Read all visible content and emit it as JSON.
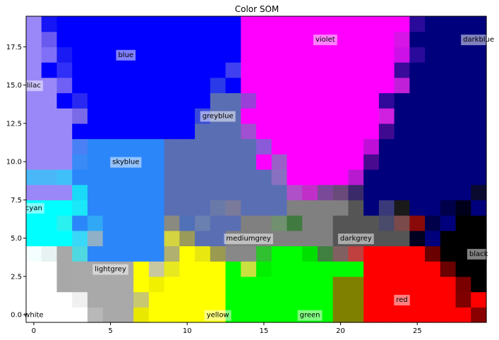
{
  "chart_data": {
    "type": "heatmap",
    "title": "Color SOM",
    "xlabel": "",
    "ylabel": "",
    "grid_cols": 30,
    "grid_rows": 20,
    "xlim": [
      -0.5,
      29.5
    ],
    "ylim": [
      -0.5,
      19.5
    ],
    "x_ticks": [
      0,
      5,
      10,
      15,
      20,
      25
    ],
    "x_tick_labels": [
      "0",
      "5",
      "10",
      "15",
      "20",
      "25"
    ],
    "y_ticks": [
      0,
      2.5,
      5,
      7.5,
      10,
      12.5,
      15,
      17.5
    ],
    "y_tick_labels": [
      "0.0",
      "2.5",
      "5.0",
      "7.5",
      "10.0",
      "12.5",
      "15.0",
      "17.5"
    ],
    "palette": {
      "L": "#9b88f8",
      "B": "#0000fe",
      "V": "#ff00ff",
      "D": "#00007d",
      "S": "#2b86fa",
      "G": "#5a6eb4",
      "C": "#00ffff",
      "M": "#808080",
      "K": "#555555",
      "k": "#000000",
      "Y": "#ffff00",
      "N": "#00ff00",
      "R": "#ff0000",
      "W": "#ffffff",
      "A": "#a9a9a9"
    },
    "grid": [
      "LBBBBBBBBBBBBBVVVVVVVVVVVDDDDD",
      "LBBBBBBBBBBBBBVVVVVVVVVVVDDDDD",
      "LBBBBBBBBBBBBBVVVVVVVVVVVDDDDD",
      "LBBBBBBBBBBBBBVVVVVVVVVVVDDDDD",
      "LLBBBBBBBBBBBBVVVVVVVVVVVDDDDD",
      "LLBBBBBBBBBBGGVVVVVVVVVVDDDDDD",
      "LLLBBBBBBBBGGGVVVVVVVVVVDDDDDD",
      "LLLBBBBBBBBGGGVVVVVVVVVVDDDDDD",
      "LLLLSSSSSGGGGGGVVVVVVVVDDDDDDD",
      "LLLSSSSSSGGGGGGVVVVVVVVDDDDDDD",
      "LLLSSSSSSGGGGGGGVVVVVVDDDDDDDD",
      "LLLSSSSSSGGGGGGGGVVVVVDDDDDDDD",
      "CCCSSSSSSGGGGGGGGMMMMKDDDDDDDD",
      "CCCSSSSSSGGGGGMMMMMMKKKKDDDDkk",
      "CCCSSSSSSGGGGMMMMMMMKKKKKDDkkk",
      "CCCCSSSSSGGMMMMMMMMMKKKKKKkkkk",
      "CCCCAAAAAAMMMMMMMMMMKKKKKKkkkk",
      "CCCCAAAAAAMMMMMMMMMMKKKKKKkkkk",
      "CCCCAAAAAMMMMMMMMMMMKKKKKKkkkk",
      "CCCCAAAAAAMMMMMMMMMMKKKKKKkkkk"
    ],
    "overrides": [
      {
        "c": 1,
        "r": 19,
        "color": "#1515f5"
      },
      {
        "c": 25,
        "r": 19,
        "color": "#2a0a9a"
      },
      {
        "c": 1,
        "r": 18,
        "color": "#6a5af0"
      },
      {
        "c": 24,
        "r": 18,
        "color": "#d616e6"
      },
      {
        "c": 1,
        "r": 17,
        "color": "#8070f8"
      },
      {
        "c": 24,
        "r": 17,
        "color": "#cc10e8"
      },
      {
        "c": 2,
        "r": 17,
        "color": "#1a1af5"
      },
      {
        "c": 25,
        "r": 17,
        "color": "#2a0a9a"
      },
      {
        "c": 13,
        "r": 16,
        "color": "#4040f0"
      },
      {
        "c": 24,
        "r": 16,
        "color": "#3a0a9a"
      },
      {
        "c": 2,
        "r": 16,
        "color": "#3030f8"
      },
      {
        "c": 12,
        "r": 15,
        "color": "#2a3ae8"
      },
      {
        "c": 24,
        "r": 15,
        "color": "#c020d8"
      },
      {
        "c": 2,
        "r": 15,
        "color": "#7060f5"
      },
      {
        "c": 14,
        "r": 14,
        "color": "#9a40d8"
      },
      {
        "c": 23,
        "r": 14,
        "color": "#30089a"
      },
      {
        "c": 3,
        "r": 14,
        "color": "#2828f0"
      },
      {
        "c": 11,
        "r": 13,
        "color": "#3a4ad8"
      },
      {
        "c": 23,
        "r": 13,
        "color": "#d020e0"
      },
      {
        "c": 3,
        "r": 13,
        "color": "#7a6ae8"
      },
      {
        "c": 14,
        "r": 12,
        "color": "#a050d0"
      },
      {
        "c": 23,
        "r": 12,
        "color": "#400a90"
      },
      {
        "c": 3,
        "r": 11,
        "color": "#4a80f5"
      },
      {
        "c": 15,
        "r": 11,
        "color": "#8a5ad8"
      },
      {
        "c": 22,
        "r": 11,
        "color": "#c010d8"
      },
      {
        "c": 22,
        "r": 10,
        "color": "#4a0a90"
      },
      {
        "c": 3,
        "r": 10,
        "color": "#3a8af8"
      },
      {
        "c": 16,
        "r": 10,
        "color": "#9a60c8"
      },
      {
        "c": 0,
        "r": 9,
        "color": "#4ab8f8"
      },
      {
        "c": 1,
        "r": 9,
        "color": "#4ab8f8"
      },
      {
        "c": 2,
        "r": 9,
        "color": "#40c0f8"
      },
      {
        "c": 16,
        "r": 9,
        "color": "#8a70c0"
      },
      {
        "c": 21,
        "r": 9,
        "color": "#b81ad0"
      },
      {
        "c": 17,
        "r": 8,
        "color": "#b050c8"
      },
      {
        "c": 18,
        "r": 8,
        "color": "#c030c8"
      },
      {
        "c": 19,
        "r": 8,
        "color": "#7a4a98"
      },
      {
        "c": 20,
        "r": 8,
        "color": "#6a4a7a"
      },
      {
        "c": 21,
        "r": 8,
        "color": "#3a2a6a"
      },
      {
        "c": 3,
        "r": 8,
        "color": "#1adaf8"
      },
      {
        "c": 29,
        "r": 8,
        "color": "#0a0a30"
      },
      {
        "c": 3,
        "r": 7,
        "color": "#1ae8f8"
      },
      {
        "c": 12,
        "r": 7,
        "color": "#6a7aa8"
      },
      {
        "c": 13,
        "r": 7,
        "color": "#7a7a9a"
      },
      {
        "c": 23,
        "r": 7,
        "color": "#3a3a7a"
      },
      {
        "c": 27,
        "r": 7,
        "color": "#00004a"
      },
      {
        "c": 28,
        "r": 7,
        "color": "#00001a"
      },
      {
        "c": 4,
        "r": 6,
        "color": "#30a8f5"
      },
      {
        "c": 9,
        "r": 6,
        "color": "#4a6ad0"
      },
      {
        "c": 10,
        "r": 6,
        "color": "#5070b8"
      },
      {
        "c": 11,
        "r": 6,
        "color": "#6a80b0"
      },
      {
        "c": 23,
        "r": 6,
        "color": "#4a4a6a"
      },
      {
        "c": 24,
        "r": 6,
        "color": "#2a2a7a"
      },
      {
        "c": 26,
        "r": 6,
        "color": "#00004a"
      },
      {
        "c": 3,
        "r": 5,
        "color": "#3ad8f8"
      },
      {
        "c": 4,
        "r": 5,
        "color": "#90b0c8"
      },
      {
        "c": 10,
        "r": 5,
        "color": "#8a8a9a"
      },
      {
        "c": 25,
        "r": 5,
        "color": "#000020"
      },
      {
        "c": 3,
        "r": 4,
        "color": "#50d8e0"
      },
      {
        "c": 10,
        "r": 4,
        "color": "#808888"
      },
      {
        "c": 24,
        "r": 4,
        "color": "#2a2a5a"
      },
      {
        "c": 24,
        "r": 3,
        "color": "#1a1a1a"
      },
      {
        "c": 2,
        "r": 2,
        "color": "#2af0f0"
      },
      {
        "c": 9,
        "r": 2,
        "color": "#8a8a80"
      },
      {
        "c": 16,
        "r": 2,
        "color": "#709070"
      },
      {
        "c": 17,
        "r": 2,
        "color": "#407a40"
      },
      {
        "c": 24,
        "r": 2,
        "color": "#7a4a4a"
      },
      {
        "c": 25,
        "r": 2,
        "color": "#8a0a0a"
      },
      {
        "c": 9,
        "r": 1,
        "color": "#d4d440"
      },
      {
        "c": 10,
        "r": 1,
        "color": "#9a9a5a"
      },
      {
        "c": 0,
        "r": 0,
        "color": "#f5fefe"
      },
      {
        "c": 1,
        "r": 0,
        "color": "#e8f2f2"
      },
      {
        "c": 2,
        "r": 0,
        "color": "#a8a8a8"
      },
      {
        "c": 9,
        "r": 0,
        "color": "#b0b070"
      },
      {
        "c": 10,
        "r": 0,
        "color": "#ffff00"
      },
      {
        "c": 11,
        "r": 0,
        "color": "#e8e810"
      },
      {
        "c": 12,
        "r": 0,
        "color": "#9a9a50"
      },
      {
        "c": 13,
        "r": 0,
        "color": "#888888"
      },
      {
        "c": 14,
        "r": 0,
        "color": "#888888"
      },
      {
        "c": 15,
        "r": 0,
        "color": "#30c030"
      },
      {
        "c": 16,
        "r": 0,
        "color": "#00ff00"
      },
      {
        "c": 17,
        "r": 0,
        "color": "#00ff00"
      },
      {
        "c": 18,
        "r": 0,
        "color": "#00e000"
      },
      {
        "c": 19,
        "r": 0,
        "color": "#408040"
      },
      {
        "c": 20,
        "r": 0,
        "color": "#806060"
      },
      {
        "c": 21,
        "r": 0,
        "color": "#c04040"
      },
      {
        "c": 22,
        "r": 0,
        "color": "#ff0000"
      },
      {
        "c": 23,
        "r": 0,
        "color": "#ff0000"
      },
      {
        "c": 24,
        "r": 0,
        "color": "#ff0000"
      },
      {
        "c": 25,
        "r": 0,
        "color": "#ff0000"
      },
      {
        "c": 26,
        "r": 0,
        "color": "#6a0000"
      },
      {
        "c": 27,
        "r": 0,
        "color": "#000000"
      }
    ],
    "bottom_rows": [
      "WWWAAAAYYYYYYNNNNNNNNNRRRRRRkk",
      "WWWAAAAYYYYYYNNNNNNNNNRRRRRRRk",
      "WWWAAAAYYYYYYNNNNNNNNNRRRRRRRR",
      "WWWAAAAYYYYYYNNNNNNNNNRRRRRRRR"
    ],
    "bottom_overrides": [
      {
        "c": 2,
        "r": 3,
        "color": "#a8a8a8"
      },
      {
        "c": 8,
        "r": 3,
        "color": "#c8c8a0"
      },
      {
        "c": 9,
        "r": 3,
        "color": "#e8e820"
      },
      {
        "c": 14,
        "r": 3,
        "color": "#c8e040"
      },
      {
        "c": 15,
        "r": 3,
        "color": "#00f000"
      },
      {
        "c": 27,
        "r": 3,
        "color": "#6a0000"
      },
      {
        "c": 2,
        "r": 2,
        "color": "#a8a8a8"
      },
      {
        "c": 8,
        "r": 2,
        "color": "#f0f000"
      },
      {
        "c": 20,
        "r": 2,
        "color": "#808000"
      },
      {
        "c": 21,
        "r": 2,
        "color": "#808000"
      },
      {
        "c": 28,
        "r": 2,
        "color": "#7a0000"
      },
      {
        "c": 3,
        "r": 1,
        "color": "#f0f0f0"
      },
      {
        "c": 7,
        "r": 1,
        "color": "#c8c870"
      },
      {
        "c": 20,
        "r": 1,
        "color": "#808000"
      },
      {
        "c": 21,
        "r": 1,
        "color": "#808000"
      },
      {
        "c": 28,
        "r": 1,
        "color": "#800000"
      },
      {
        "c": 3,
        "r": 0,
        "color": "#ffffff"
      },
      {
        "c": 4,
        "r": 0,
        "color": "#b8b8b8"
      },
      {
        "c": 7,
        "r": 0,
        "color": "#e8e800"
      },
      {
        "c": 20,
        "r": 0,
        "color": "#808000"
      },
      {
        "c": 21,
        "r": 0,
        "color": "#808000"
      },
      {
        "c": 29,
        "r": 0,
        "color": "#8a0000"
      }
    ],
    "annotations": [
      {
        "text": "blue",
        "x": 6,
        "y": 17
      },
      {
        "text": "violet",
        "x": 19,
        "y": 18
      },
      {
        "text": "darkblue",
        "x": 29,
        "y": 18
      },
      {
        "text": "lilac",
        "x": 0,
        "y": 15
      },
      {
        "text": "greyblue",
        "x": 12,
        "y": 13
      },
      {
        "text": "skyblue",
        "x": 6,
        "y": 10
      },
      {
        "text": "cyan",
        "x": 0,
        "y": 7
      },
      {
        "text": "mediumgrey",
        "x": 14,
        "y": 5
      },
      {
        "text": "darkgrey",
        "x": 21,
        "y": 5
      },
      {
        "text": "black",
        "x": 29,
        "y": 4
      },
      {
        "text": "lightgrey",
        "x": 5,
        "y": 3
      },
      {
        "text": "red",
        "x": 24,
        "y": 1
      },
      {
        "text": "white",
        "x": 0,
        "y": 0
      },
      {
        "text": "yellow",
        "x": 12,
        "y": 0
      },
      {
        "text": "green",
        "x": 18,
        "y": 0
      }
    ]
  }
}
